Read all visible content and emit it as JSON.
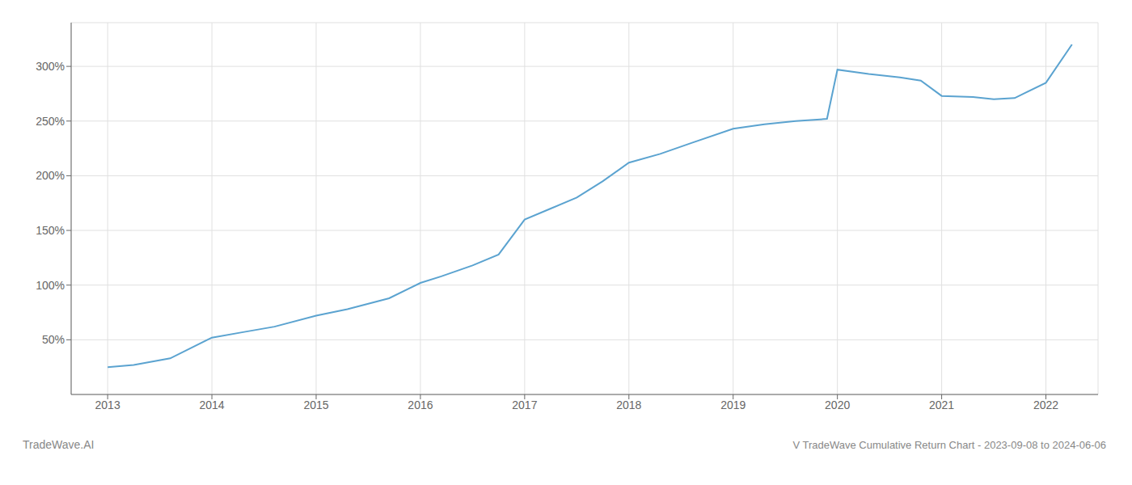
{
  "chart_data": {
    "type": "line",
    "title": "V TradeWave Cumulative Return Chart - 2023-09-08 to 2024-06-06",
    "annotations": [
      "TradeWave.AI"
    ],
    "x": [
      2013.0,
      2013.25,
      2013.6,
      2014.0,
      2014.3,
      2014.6,
      2015.0,
      2015.3,
      2015.7,
      2016.0,
      2016.2,
      2016.5,
      2016.75,
      2017.0,
      2017.25,
      2017.5,
      2017.75,
      2018.0,
      2018.3,
      2018.6,
      2019.0,
      2019.3,
      2019.6,
      2019.9,
      2020.0,
      2020.3,
      2020.6,
      2020.8,
      2021.0,
      2021.3,
      2021.5,
      2021.7,
      2022.0,
      2022.25
    ],
    "values": [
      25,
      27,
      33,
      52,
      57,
      62,
      72,
      78,
      88,
      102,
      108,
      118,
      128,
      160,
      170,
      180,
      195,
      212,
      220,
      230,
      243,
      247,
      250,
      252,
      297,
      293,
      290,
      287,
      273,
      272,
      270,
      271,
      285,
      320
    ],
    "color": "#5ba3d0",
    "xlim": [
      2012.65,
      2022.5
    ],
    "ylim": [
      0,
      340
    ],
    "xticks": [
      2013,
      2014,
      2015,
      2016,
      2017,
      2018,
      2019,
      2020,
      2021,
      2022
    ],
    "yticks": [
      {
        "value": 50,
        "label": "50%"
      },
      {
        "value": 100,
        "label": "100%"
      },
      {
        "value": 150,
        "label": "150%"
      },
      {
        "value": 200,
        "label": "200%"
      },
      {
        "value": 250,
        "label": "250%"
      },
      {
        "value": 300,
        "label": "300%"
      }
    ],
    "grid": true
  }
}
